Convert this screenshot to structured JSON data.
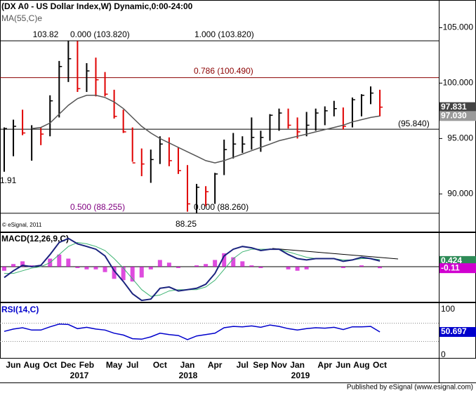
{
  "chart_data": [
    {
      "type": "hlc",
      "title": "(DX A0 - US Dollar Index,W) Dynamic,0:00-24:00",
      "categories": [
        null,
        "Jun",
        null,
        "Aug",
        null,
        "Oct",
        null,
        "Dec",
        null,
        "Feb",
        null,
        null,
        "May",
        null,
        "Jul",
        null,
        null,
        "Oct",
        null,
        null,
        "Jan",
        null,
        null,
        "Apr",
        null,
        null,
        "Jul",
        null,
        "Sep",
        null,
        "Nov",
        null,
        "Jan",
        null,
        null,
        "Apr",
        null,
        "Jun",
        null,
        "Aug",
        null,
        "Oct"
      ],
      "year_labels": [
        "2017",
        "2018",
        "2019"
      ],
      "high": [
        96.0,
        96.7,
        97.6,
        96.2,
        96.0,
        98.9,
        102.0,
        103.82,
        103.8,
        101.8,
        102.3,
        101.0,
        99.4,
        97.6,
        96.0,
        94.1,
        94.0,
        95.2,
        95.1,
        94.2,
        92.6,
        90.9,
        90.7,
        91.9,
        94.9,
        95.5,
        95.2,
        96.9,
        95.7,
        97.2,
        97.7,
        97.7,
        96.9,
        97.4,
        97.7,
        97.9,
        98.4,
        97.8,
        98.7,
        99.0,
        99.7,
        99.4
      ],
      "low": [
        92.0,
        93.4,
        95.3,
        93.0,
        94.4,
        95.2,
        96.9,
        100.1,
        99.2,
        99.2,
        98.8,
        98.8,
        96.8,
        95.5,
        92.9,
        91.6,
        91.0,
        92.7,
        92.5,
        91.8,
        88.4,
        88.25,
        88.9,
        89.1,
        91.7,
        93.2,
        93.7,
        94.0,
        93.8,
        94.8,
        95.7,
        95.9,
        95.0,
        95.2,
        95.7,
        96.2,
        97.0,
        95.8,
        96.0,
        97.0,
        98.1,
        97.0
      ],
      "close": [
        95.9,
        96.1,
        95.5,
        95.9,
        95.4,
        98.4,
        101.5,
        102.2,
        99.5,
        101.1,
        100.3,
        99.0,
        97.0,
        95.6,
        92.8,
        92.7,
        93.1,
        94.5,
        93.0,
        92.1,
        89.1,
        90.6,
        90.2,
        91.8,
        94.0,
        94.5,
        94.5,
        95.1,
        95.1,
        97.1,
        97.3,
        96.2,
        95.6,
        96.2,
        97.3,
        97.5,
        97.7,
        96.1,
        98.5,
        98.9,
        99.1,
        97.831
      ],
      "up_color": "#000000",
      "down_color": "#e00000",
      "series": [
        {
          "name": "MA(55,C)e",
          "color": "#555555",
          "values": [
            null,
            null,
            null,
            95.9,
            96.0,
            96.4,
            97.2,
            98.0,
            98.6,
            98.9,
            98.9,
            98.7,
            98.3,
            97.7,
            96.9,
            96.1,
            95.5,
            95.0,
            94.6,
            94.2,
            93.8,
            93.4,
            93.0,
            92.8,
            93.0,
            93.3,
            93.6,
            93.9,
            94.2,
            94.5,
            94.8,
            95.0,
            95.2,
            95.4,
            95.6,
            95.8,
            96.0,
            96.2,
            96.5,
            96.7,
            96.9,
            97.03
          ]
        }
      ],
      "ylim": [
        86.6,
        107.5
      ],
      "yticks": [
        {
          "value": 90,
          "label": "90.000"
        },
        {
          "value": 95,
          "label": "95.000"
        },
        {
          "value": 100,
          "label": "100.000"
        },
        {
          "value": 105,
          "label": "105.000"
        }
      ],
      "levels": [
        {
          "value": 103.82,
          "color": "#000000"
        },
        {
          "value": 100.49,
          "color": "#8b0000"
        },
        {
          "value": 95.84,
          "color": "#000000"
        },
        {
          "value": 88.255,
          "color": "#000000"
        }
      ],
      "annotations": [
        {
          "text": "103.82",
          "color": "#000000"
        },
        {
          "text": "0.000 (103.820)",
          "color": "#000000"
        },
        {
          "text": "1.000 (103.820)",
          "color": "#000000"
        },
        {
          "text": "0.786 (100.490)",
          "color": "#8b0000"
        },
        {
          "text": "(95.840)",
          "color": "#000000"
        },
        {
          "text": "0.500 (88.255)",
          "color": "#800080"
        },
        {
          "text": "0.000 (88.260)",
          "color": "#000000"
        },
        {
          "text": "88.25",
          "color": "#000000"
        },
        {
          "text": "1.91",
          "color": "#000000"
        }
      ],
      "tags": [
        {
          "value": 97.831,
          "label": "97.831",
          "bg": "#444444",
          "fg": "#ffffff"
        },
        {
          "value": 97.03,
          "label": "97.030",
          "bg": "#9a9a9a",
          "fg": "#ffffff"
        }
      ],
      "copyright": "© eSignal, 2011"
    },
    {
      "type": "macd",
      "title": "MACD(12,26,9,C)",
      "ylim": [
        -2.6,
        2.5
      ],
      "macd": {
        "color": "#1a237e",
        "values": [
          -0.8,
          -0.3,
          0.1,
          0,
          0.1,
          0.9,
          1.8,
          2.1,
          1.7,
          1.5,
          1.3,
          0.8,
          -0.3,
          -1.1,
          -2.0,
          -2.5,
          -2.4,
          -1.6,
          -1.5,
          -1.8,
          -1.7,
          -1.6,
          -1.3,
          -0.5,
          0.8,
          1.3,
          1.5,
          1.4,
          1.2,
          1.3,
          1.3,
          0.9,
          0.6,
          0.5,
          0.6,
          0.6,
          0.6,
          0.4,
          0.5,
          0.7,
          0.6,
          0.424
        ]
      },
      "signal": {
        "color": "#3cb371",
        "values": [
          -0.5,
          -0.5,
          -0.3,
          -0.1,
          0,
          0.3,
          0.9,
          1.5,
          1.8,
          1.7,
          1.5,
          1.2,
          0.6,
          -0.1,
          -0.9,
          -1.7,
          -2.2,
          -2.1,
          -1.8,
          -1.7,
          -1.7,
          -1.7,
          -1.5,
          -1.0,
          -0.2,
          0.6,
          1.1,
          1.3,
          1.3,
          1.3,
          1.3,
          1.1,
          0.9,
          0.7,
          0.6,
          0.6,
          0.6,
          0.5,
          0.5,
          0.6,
          0.6,
          0.53
        ]
      },
      "histogram": {
        "color": "#d000d0",
        "values": [
          -0.3,
          0.2,
          0.4,
          0.1,
          0.1,
          0.6,
          0.9,
          0.6,
          -0.1,
          -0.2,
          -0.2,
          -0.4,
          -0.9,
          -1.0,
          -1.1,
          -0.8,
          -0.2,
          0.5,
          0.3,
          -0.1,
          0,
          0.1,
          0.2,
          0.5,
          1.0,
          0.7,
          0.4,
          0.1,
          -0.1,
          0,
          0,
          -0.2,
          -0.3,
          -0.2,
          0,
          0,
          0,
          -0.1,
          0,
          0.1,
          0,
          -0.11
        ]
      },
      "tags": [
        {
          "value": 0.424,
          "label": "0.424",
          "bg": "#2e8b57",
          "fg": "#ffffff"
        },
        {
          "value": -0.11,
          "label": "-0.11",
          "bg": "#d000d0",
          "fg": "#ffffff"
        }
      ]
    },
    {
      "type": "line",
      "title": "RSI(14,C)",
      "ylim": [
        0,
        100
      ],
      "yticks": [
        0,
        100
      ],
      "levels": [
        70,
        30
      ],
      "color": "#0000cc",
      "values": [
        52,
        57,
        60,
        55,
        55,
        62,
        68,
        67,
        58,
        61,
        57,
        55,
        48,
        44,
        36,
        35,
        40,
        48,
        45,
        43,
        34,
        42,
        45,
        48,
        60,
        63,
        62,
        64,
        61,
        66,
        63,
        58,
        55,
        58,
        60,
        59,
        61,
        56,
        62,
        62,
        63,
        50.697
      ],
      "tags": [
        {
          "value": 50.697,
          "label": "50.697",
          "bg": "#0000cc",
          "fg": "#ffffff"
        }
      ]
    }
  ],
  "footer": "Published by eSignal (www.esignal.com)"
}
